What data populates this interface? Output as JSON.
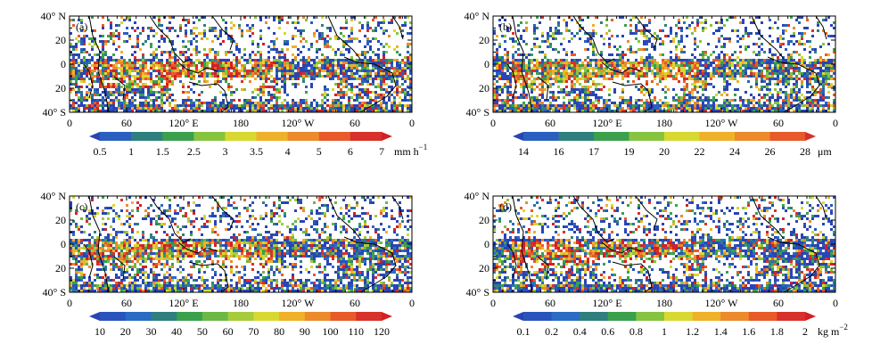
{
  "lat_ticks": [
    "40° N",
    "20",
    "0",
    "20",
    "40° S"
  ],
  "lon_ticks": [
    "0",
    "60",
    "120° E",
    "180",
    "120° W",
    "60",
    "0"
  ],
  "panels": [
    {
      "tag": "(a)",
      "unit_prefix": "mm h",
      "unit_sup": "−1",
      "colorbar_labels": [
        "0.5",
        "1",
        "1.5",
        "2.5",
        "3",
        "3.5",
        "4",
        "5",
        "6",
        "7"
      ],
      "colors": [
        "#2a44b4",
        "#2a5fc0",
        "#2f7f7f",
        "#3aa04c",
        "#86c440",
        "#d8d832",
        "#efb12a",
        "#ec8a2c",
        "#e85a2a",
        "#d8302a",
        "#d31f26"
      ]
    },
    {
      "tag": "(b)",
      "unit_prefix": "μm",
      "unit_sup": "",
      "colorbar_labels": [
        "14",
        "16",
        "17",
        "19",
        "20",
        "22",
        "24",
        "26",
        "28"
      ],
      "colors": [
        "#2a44b4",
        "#2a5fc0",
        "#2f7f7f",
        "#3aa04c",
        "#86c440",
        "#d8d832",
        "#efb12a",
        "#ec8a2c",
        "#e85a2a",
        "#d8302a"
      ]
    },
    {
      "tag": "(c)",
      "unit_prefix": "",
      "unit_sup": "",
      "colorbar_labels": [
        "10",
        "20",
        "30",
        "40",
        "50",
        "60",
        "70",
        "80",
        "90",
        "100",
        "110",
        "120"
      ],
      "colors": [
        "#2a44b4",
        "#2a54bc",
        "#2a6cc4",
        "#2f7f7f",
        "#3aa04c",
        "#6cb844",
        "#a6cc3c",
        "#d8d832",
        "#efb12a",
        "#ec8a2c",
        "#e85a2a",
        "#d8302a",
        "#d31f26"
      ]
    },
    {
      "tag": "(d)",
      "unit_prefix": "kg m",
      "unit_sup": "−2",
      "colorbar_labels": [
        "0.1",
        "0.2",
        "0.4",
        "0.6",
        "0.8",
        "1",
        "1.2",
        "1.4",
        "1.6",
        "1.8",
        "2"
      ],
      "colors": [
        "#2a44b4",
        "#2a54bc",
        "#2a6cc4",
        "#2f7f7f",
        "#3aa04c",
        "#86c440",
        "#d8d832",
        "#efb12a",
        "#ec8a2c",
        "#e85a2a",
        "#d8302a",
        "#d31f26"
      ]
    }
  ]
}
